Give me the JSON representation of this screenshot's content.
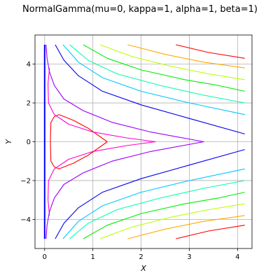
{
  "chart_data": {
    "type": "line",
    "title": "NormalGamma(mu=0, kappa=1, alpha=1, beta=1)",
    "xlabel": "X",
    "ylabel": "Y",
    "xlim": [
      -0.2,
      4.3
    ],
    "ylim": [
      -5.5,
      5.5
    ],
    "x_ticks": [
      0,
      1,
      2,
      3,
      4
    ],
    "y_ticks": [
      -4,
      -2,
      0,
      2,
      4
    ],
    "grid": true,
    "description_of_contours": "contour levels of the Normal-Gamma density",
    "series": [
      {
        "color": "#ff0000",
        "values": [
          [
            1.3,
            0
          ],
          [
            0.9,
            0.7
          ],
          [
            0.6,
            1.1
          ],
          [
            0.3,
            1.4
          ],
          [
            0.2,
            1.3
          ],
          [
            0.13,
            1.0
          ],
          [
            0.12,
            0
          ],
          [
            0.13,
            -1.0
          ],
          [
            0.2,
            -1.3
          ],
          [
            0.3,
            -1.4
          ],
          [
            0.6,
            -1.1
          ],
          [
            0.9,
            -0.7
          ],
          [
            1.3,
            0
          ]
        ]
      },
      {
        "color": "#ff00cc",
        "values": [
          [
            0.1,
            3.8
          ],
          [
            0.07,
            3.0
          ],
          [
            0.08,
            2.0
          ],
          [
            0.2,
            1.4
          ],
          [
            0.5,
            0.9
          ],
          [
            1.0,
            0.5
          ],
          [
            1.7,
            0.2
          ],
          [
            2.3,
            0
          ],
          [
            1.7,
            -0.2
          ],
          [
            1.0,
            -0.5
          ],
          [
            0.5,
            -0.9
          ],
          [
            0.2,
            -1.4
          ],
          [
            0.08,
            -2.0
          ],
          [
            0.07,
            -3.0
          ],
          [
            0.1,
            -3.8
          ]
        ]
      },
      {
        "color": "#9900ff",
        "values": [
          [
            0.03,
            5.0
          ],
          [
            0.05,
            4.3
          ],
          [
            0.1,
            3.6
          ],
          [
            0.2,
            2.9
          ],
          [
            0.4,
            2.2
          ],
          [
            0.8,
            1.6
          ],
          [
            1.4,
            1.0
          ],
          [
            2.2,
            0.5
          ],
          [
            3.3,
            0
          ],
          [
            2.2,
            -0.5
          ],
          [
            1.4,
            -1.0
          ],
          [
            0.8,
            -1.6
          ],
          [
            0.4,
            -2.2
          ],
          [
            0.2,
            -2.9
          ],
          [
            0.1,
            -3.6
          ],
          [
            0.05,
            -4.3
          ],
          [
            0.03,
            -5.0
          ]
        ]
      },
      {
        "color": "#0000ff",
        "values": [
          [
            0.0,
            5.0
          ],
          [
            0.0,
            -5.0
          ]
        ]
      },
      {
        "color": "#0000ee",
        "values": [
          [
            0.22,
            5.0
          ],
          [
            0.4,
            4.2
          ],
          [
            0.7,
            3.4
          ],
          [
            1.2,
            2.6
          ],
          [
            2.0,
            1.9
          ],
          [
            3.0,
            1.2
          ],
          [
            4.15,
            0.4
          ],
          null,
          [
            4.15,
            -0.4
          ],
          [
            3.0,
            -1.2
          ],
          [
            2.0,
            -1.9
          ],
          [
            1.2,
            -2.6
          ],
          [
            0.7,
            -3.4
          ],
          [
            0.4,
            -4.2
          ],
          [
            0.22,
            -5.0
          ]
        ]
      },
      {
        "color": "#00c8ff",
        "values": [
          [
            0.38,
            5.0
          ],
          [
            0.7,
            4.1
          ],
          [
            1.2,
            3.3
          ],
          [
            2.0,
            2.6
          ],
          [
            3.0,
            2.0
          ],
          [
            4.15,
            1.4
          ],
          null,
          [
            4.15,
            -1.4
          ],
          [
            3.0,
            -2.0
          ],
          [
            2.0,
            -2.6
          ],
          [
            1.2,
            -3.3
          ],
          [
            0.7,
            -4.1
          ],
          [
            0.38,
            -5.0
          ]
        ]
      },
      {
        "color": "#00ffaa",
        "values": [
          [
            0.52,
            5.0
          ],
          [
            0.9,
            4.2
          ],
          [
            1.5,
            3.5
          ],
          [
            2.4,
            2.9
          ],
          [
            3.3,
            2.4
          ],
          [
            4.15,
            2.0
          ],
          null,
          [
            4.15,
            -2.0
          ],
          [
            3.3,
            -2.4
          ],
          [
            2.4,
            -2.9
          ],
          [
            1.5,
            -3.5
          ],
          [
            0.9,
            -4.2
          ],
          [
            0.52,
            -5.0
          ]
        ]
      },
      {
        "color": "#00ee00",
        "values": [
          [
            0.8,
            5.0
          ],
          [
            1.3,
            4.3
          ],
          [
            2.0,
            3.7
          ],
          [
            2.9,
            3.2
          ],
          [
            3.6,
            2.9
          ],
          [
            4.15,
            2.6
          ],
          null,
          [
            4.15,
            -2.6
          ],
          [
            3.6,
            -2.9
          ],
          [
            2.9,
            -3.2
          ],
          [
            2.0,
            -3.7
          ],
          [
            1.3,
            -4.3
          ],
          [
            0.8,
            -5.0
          ]
        ]
      },
      {
        "color": "#bbff00",
        "values": [
          [
            1.15,
            5.0
          ],
          [
            1.8,
            4.4
          ],
          [
            2.6,
            3.9
          ],
          [
            3.4,
            3.5
          ],
          [
            4.15,
            3.2
          ],
          null,
          [
            4.15,
            -3.2
          ],
          [
            3.4,
            -3.5
          ],
          [
            2.6,
            -3.9
          ],
          [
            1.8,
            -4.4
          ],
          [
            1.15,
            -5.0
          ]
        ]
      },
      {
        "color": "#ffaa00",
        "values": [
          [
            1.72,
            5.0
          ],
          [
            2.5,
            4.5
          ],
          [
            3.3,
            4.1
          ],
          [
            4.15,
            3.8
          ],
          null,
          [
            4.15,
            -3.8
          ],
          [
            3.3,
            -4.1
          ],
          [
            2.5,
            -4.5
          ],
          [
            1.72,
            -5.0
          ]
        ]
      },
      {
        "color": "#ff0000",
        "values": [
          [
            2.72,
            5.0
          ],
          [
            3.4,
            4.6
          ],
          [
            4.15,
            4.3
          ],
          null,
          [
            4.15,
            -4.3
          ],
          [
            3.4,
            -4.6
          ],
          [
            2.72,
            -5.0
          ]
        ]
      }
    ]
  }
}
